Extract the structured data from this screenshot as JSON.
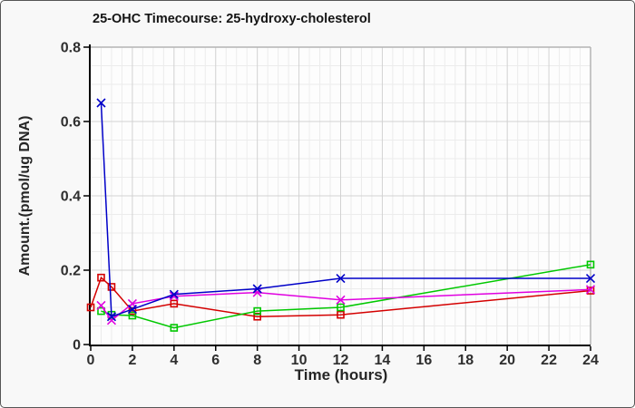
{
  "figure": {
    "background": "#f8f8f8",
    "border_color": "#555555"
  },
  "chart_data": {
    "type": "line",
    "title": "25-OHC Timecourse: 25-hydroxy-cholesterol",
    "xlabel": "Time (hours)",
    "ylabel": "Amount.(pmol/ug DNA)",
    "xlim": [
      0,
      24
    ],
    "ylim": [
      0,
      0.8
    ],
    "xticks": [
      0,
      2,
      4,
      6,
      8,
      10,
      12,
      14,
      16,
      18,
      20,
      22,
      24
    ],
    "xtick_labels": [
      "0",
      "2",
      "4",
      "6",
      "8",
      "10",
      "12",
      "14",
      "16",
      "18",
      "20",
      "22",
      "24"
    ],
    "yticks": [
      0,
      0.2,
      0.4,
      0.6,
      0.8
    ],
    "ytick_labels": [
      "0",
      "0.2",
      "0.4",
      "0.6",
      "0.8"
    ],
    "grid": {
      "show_major": true,
      "show_minor": true,
      "x_minor_step": 0.5,
      "y_minor_step": 0.05
    },
    "legend_position": "none",
    "series": [
      {
        "name": "red-squares",
        "color": "#d40000",
        "marker": "square",
        "points": [
          [
            0,
            0.1
          ],
          [
            0.5,
            0.18
          ],
          [
            1,
            0.155
          ],
          [
            2,
            0.09
          ],
          [
            4,
            0.11
          ],
          [
            8,
            0.075
          ],
          [
            12,
            0.08
          ],
          [
            24,
            0.145
          ]
        ]
      },
      {
        "name": "green-squares",
        "color": "#00c800",
        "marker": "square",
        "points": [
          [
            0.5,
            0.09
          ],
          [
            1,
            0.08
          ],
          [
            2,
            0.078
          ],
          [
            4,
            0.045
          ],
          [
            8,
            0.09
          ],
          [
            12,
            0.1
          ],
          [
            24,
            0.215
          ]
        ]
      },
      {
        "name": "magenta-x",
        "color": "#e000e0",
        "marker": "x",
        "points": [
          [
            0.5,
            0.105
          ],
          [
            1,
            0.065
          ],
          [
            2,
            0.11
          ],
          [
            4,
            0.13
          ],
          [
            8,
            0.14
          ],
          [
            12,
            0.12
          ],
          [
            24,
            0.148
          ]
        ]
      },
      {
        "name": "blue-x",
        "color": "#0000c8",
        "marker": "x",
        "points": [
          [
            0.5,
            0.65
          ],
          [
            1,
            0.075
          ],
          [
            2,
            0.095
          ],
          [
            4,
            0.135
          ],
          [
            8,
            0.15
          ],
          [
            12,
            0.178
          ],
          [
            24,
            0.178
          ]
        ]
      }
    ],
    "style": {
      "plot_bg": "#fdfdfd",
      "grid_major": "#d2d2d2",
      "grid_minor": "#ececec",
      "frame": "#b4b4b4",
      "axis": "#000000",
      "tick_label_color": "#2e2e2e"
    }
  }
}
